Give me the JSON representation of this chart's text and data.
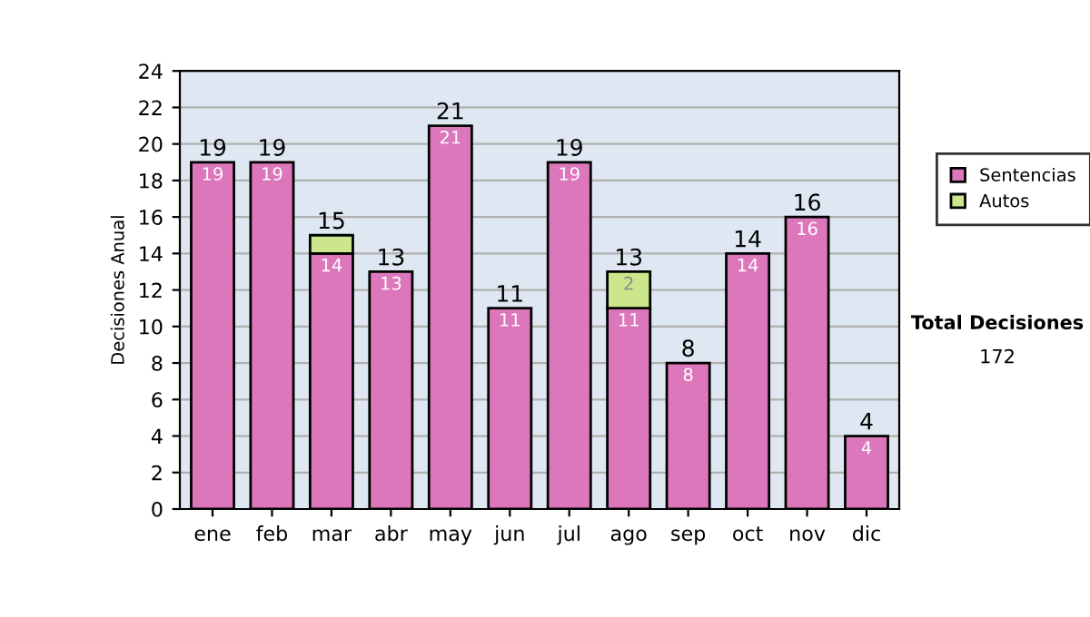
{
  "chart_data": {
    "type": "bar",
    "stacked": true,
    "ylabel": "Decisiones Anual",
    "categories": [
      "ene",
      "feb",
      "mar",
      "abr",
      "may",
      "jun",
      "jul",
      "ago",
      "sep",
      "oct",
      "nov",
      "dic"
    ],
    "series": [
      {
        "name": "Sentencias",
        "color": "#dd77bb",
        "values": [
          19,
          19,
          14,
          13,
          21,
          11,
          19,
          11,
          8,
          14,
          16,
          4
        ],
        "value_labels": [
          "19",
          "19",
          "14",
          "13",
          "21",
          "11",
          "19",
          "11",
          "8",
          "14",
          "16",
          "4"
        ]
      },
      {
        "name": "Autos",
        "color": "#cce68c",
        "values": [
          null,
          null,
          1,
          null,
          null,
          null,
          null,
          2,
          null,
          null,
          null,
          null
        ],
        "value_labels": [
          null,
          null,
          null,
          null,
          null,
          null,
          null,
          "2",
          null,
          null,
          null,
          null
        ]
      }
    ],
    "totals": [
      "19",
      "19",
      "15",
      "13",
      "21",
      "11",
      "19",
      "13",
      "8",
      "14",
      "16",
      "4"
    ],
    "ylim": [
      0,
      24
    ],
    "yticks": [
      0,
      2,
      4,
      6,
      8,
      10,
      12,
      14,
      16,
      18,
      20,
      22,
      24
    ],
    "grid": "y",
    "legend": "right",
    "annotations": [
      "Total Decisiones",
      "172"
    ]
  }
}
